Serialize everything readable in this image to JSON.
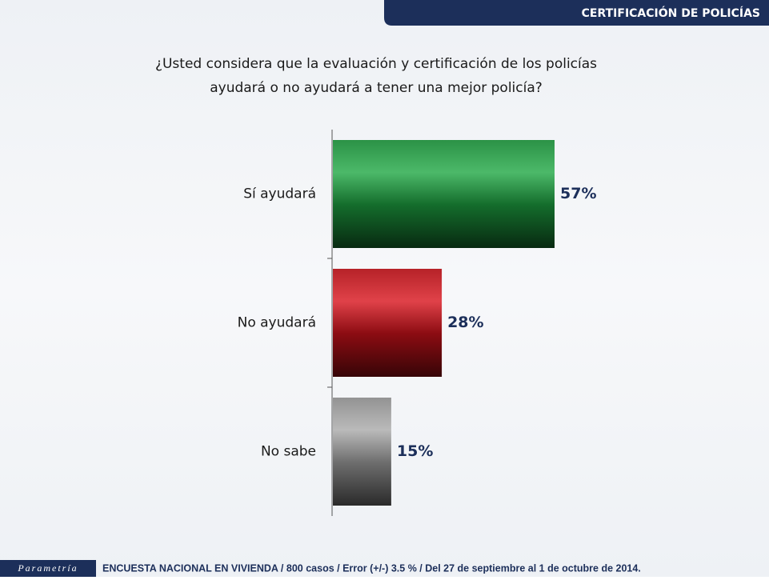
{
  "header": "CERTIFICACIÓN DE POLICÍAS",
  "logo": "Parametría",
  "footnote": "ENCUESTA NACIONAL EN VIVIENDA / 800 casos / Error (+/-) 3.5 % / Del 27 de septiembre al 1 de octubre de 2014.",
  "chart_data": {
    "type": "bar",
    "orientation": "horizontal",
    "title": [
      "¿Usted considera que la evaluación y certificación de los policías",
      "ayudará o no ayudará a tener una mejor policía?"
    ],
    "categories": [
      "Sí ayudará",
      "No ayudará",
      "No sabe"
    ],
    "values": [
      57,
      28,
      15
    ],
    "value_labels": [
      "57%",
      "28%",
      "15%"
    ],
    "colors": [
      "#1fa843",
      "#d8131b",
      "#a9a9a9"
    ]
  }
}
